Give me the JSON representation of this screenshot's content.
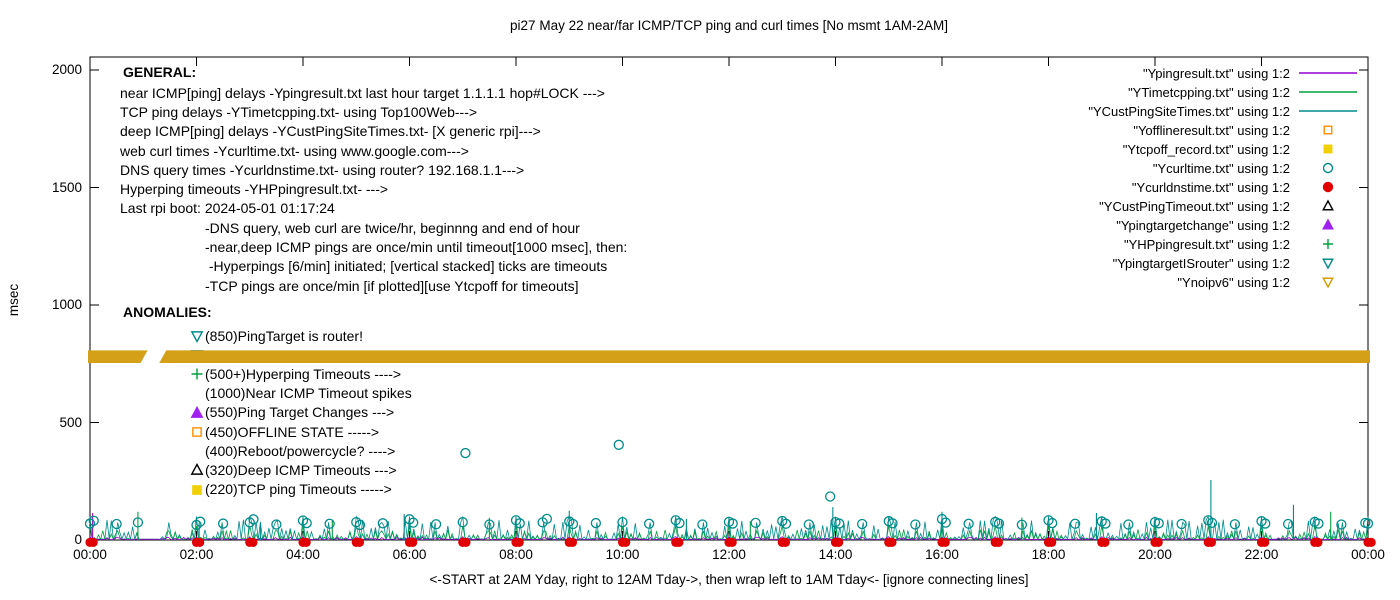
{
  "title": "pi27 May 22  near/far ICMP/TCP ping and curl times [No msmt 1AM-2AM]",
  "y_axis_label": "msec",
  "x_axis_note": "<-START at 2AM Yday, right to 12AM Tday->, then wrap left to 1AM Tday<- [ignore connecting lines]",
  "annotations": {
    "general_heading": "GENERAL:",
    "general_lines": [
      "near ICMP[ping] delays -Ypingresult.txt last hour target 1.1.1.1 hop#LOCK --->",
      "TCP ping delays -YTimetcpping.txt- using Top100Web--->",
      "deep ICMP[ping] delays -YCustPingSiteTimes.txt- [X generic rpi]--->",
      "web curl times -Ycurltime.txt- using www.google.com--->",
      "DNS query times -Ycurldnstime.txt- using router? 192.168.1.1--->",
      "Hyperping timeouts -YHPpingresult.txt- --->",
      "Last rpi boot: 2024-05-01 01:17:24"
    ],
    "general_sub_lines": [
      "-DNS query, web curl are twice/hr, beginnng and end of hour",
      "-near,deep ICMP pings are once/min until timeout[1000 msec], then:",
      " -Hyperpings [6/min] initiated; [vertical stacked] ticks are timeouts",
      "-TCP pings are once/min [if plotted][use Ytcpoff for timeouts]"
    ],
    "anomalies_heading": "ANOMALIES:",
    "anomalies": [
      {
        "label": "(850)PingTarget is router!",
        "marker": "triangle-down-open",
        "color": "#008b8b"
      },
      {
        "label": "",
        "marker": "triangle-down-open",
        "color": "#008b8b"
      },
      {
        "label": "(500+)Hyperping Timeouts ---->",
        "marker": "plus",
        "color": "#00a040"
      },
      {
        "label": "(1000)Near ICMP Timeout spikes",
        "marker": "none",
        "color": ""
      },
      {
        "label": "(550)Ping Target Changes --->",
        "marker": "triangle-up-fill",
        "color": "#a020f0"
      },
      {
        "label": "(450)OFFLINE STATE ----->",
        "marker": "square-open",
        "color": "#ff8c00"
      },
      {
        "label": "(400)Reboot/powercycle? ---->",
        "marker": "none",
        "color": ""
      },
      {
        "label": "(320)Deep ICMP Timeouts --->",
        "marker": "triangle-up-open",
        "color": "#000000"
      },
      {
        "label": "(220)TCP ping Timeouts ----->",
        "marker": "square-fill",
        "color": "#f0d000"
      }
    ]
  },
  "chart_data": {
    "type": "line+scatter",
    "title": "pi27 May 22  near/far ICMP/TCP ping and curl times [No msmt 1AM-2AM]",
    "ylabel": "msec",
    "ylim": [
      0,
      2000
    ],
    "grid": false,
    "legend_position": "top-right",
    "y_ticks": [
      0,
      500,
      1000,
      1500,
      2000
    ],
    "x_tick_labels": [
      "00:00",
      "02:00",
      "04:00",
      "06:00",
      "08:00",
      "10:00",
      "12:00",
      "14:00",
      "16:00",
      "18:00",
      "20:00",
      "22:00",
      "00:00"
    ],
    "x_range_hours": [
      0,
      24
    ],
    "legend": [
      {
        "label": "\"Ypingresult.txt\" using 1:2",
        "sample": "line",
        "color": "#9400d3"
      },
      {
        "label": "\"YTimetcpping.txt\" using 1:2",
        "sample": "line",
        "color": "#00a040"
      },
      {
        "label": "\"YCustPingSiteTimes.txt\" using 1:2",
        "sample": "line",
        "color": "#008b8b"
      },
      {
        "label": "\"Yofflineresult.txt\" using 1:2",
        "sample": "marker",
        "marker": "square-open",
        "color": "#ff8c00"
      },
      {
        "label": "\"Ytcpoff_record.txt\" using 1:2",
        "sample": "marker",
        "marker": "square-fill",
        "color": "#f0d000"
      },
      {
        "label": "\"Ycurltime.txt\" using 1:2",
        "sample": "marker",
        "marker": "circle-open",
        "color": "#008b8b"
      },
      {
        "label": "\"Ycurldnstime.txt\" using 1:2",
        "sample": "marker",
        "marker": "circle-fill",
        "color": "#e00000"
      },
      {
        "label": "\"YCustPingTimeout.txt\" using 1:2",
        "sample": "marker",
        "marker": "triangle-up-open",
        "color": "#000000"
      },
      {
        "label": "\"Ypingtargetchange\" using 1:2",
        "sample": "marker",
        "marker": "triangle-up-fill",
        "color": "#a020f0"
      },
      {
        "label": "\"YHPpingresult.txt\" using 1:2",
        "sample": "marker",
        "marker": "plus",
        "color": "#00a040"
      },
      {
        "label": "\"YpingtargetISrouter\" using 1:2",
        "sample": "marker",
        "marker": "triangle-down-open",
        "color": "#008b8b"
      },
      {
        "label": "\"Ynoipv6\" using 1:2",
        "sample": "marker",
        "marker": "triangle-down-open",
        "color": "#d79c00"
      }
    ],
    "band": {
      "series": "Ynoipv6",
      "y_center_msec": 780,
      "y_half_msec": 27,
      "gap_hours": [
        0.95,
        1.3
      ],
      "color": "#d4a017"
    },
    "noise": {
      "step_hours": 0.04,
      "quiet_hours": [
        0.95,
        1.3
      ],
      "quiet_value": 3,
      "series": [
        {
          "name": "deep_icmp_YCustPingSiteTimes",
          "color": "#008b8b",
          "min": 4,
          "max": 88,
          "hourly_peak": 100
        },
        {
          "name": "tcp_ping_YTimetcpping",
          "color": "#00a040",
          "min": 2,
          "max": 46,
          "hourly_peak": 60
        },
        {
          "name": "near_icmp_Ypingresult",
          "color": "#9400d3",
          "min": 2,
          "max": 12,
          "hourly_peak": 14
        }
      ]
    },
    "spikes": [
      [
        0.05,
        115,
        "#9400d3"
      ],
      [
        0.9,
        120,
        "#00a040"
      ],
      [
        2.05,
        75,
        "#008b8b"
      ],
      [
        3.2,
        65,
        "#008b8b"
      ],
      [
        4.55,
        85,
        "#00a040"
      ],
      [
        5.9,
        110,
        "#008b8b"
      ],
      [
        7.5,
        95,
        "#00a040"
      ],
      [
        9.0,
        125,
        "#008b8b"
      ],
      [
        11.2,
        90,
        "#008b8b"
      ],
      [
        12.4,
        80,
        "#00a040"
      ],
      [
        13.95,
        140,
        "#008b8b"
      ],
      [
        16.0,
        120,
        "#008b8b"
      ],
      [
        17.5,
        95,
        "#00a040"
      ],
      [
        18.9,
        115,
        "#008b8b"
      ],
      [
        21.05,
        255,
        "#008b8b"
      ],
      [
        22.6,
        150,
        "#008b8b"
      ],
      [
        23.3,
        120,
        "#00a040"
      ]
    ],
    "curl_points": [
      [
        0,
        70
      ],
      [
        0.07,
        82
      ],
      [
        0.5,
        68
      ],
      [
        0.9,
        75
      ],
      [
        2,
        64
      ],
      [
        2.07,
        78
      ],
      [
        2.5,
        70
      ],
      [
        3,
        75
      ],
      [
        3.07,
        88
      ],
      [
        3.5,
        66
      ],
      [
        4,
        83
      ],
      [
        4.07,
        72
      ],
      [
        4.5,
        69
      ],
      [
        5,
        76
      ],
      [
        5.07,
        64
      ],
      [
        5.5,
        71
      ],
      [
        6,
        88
      ],
      [
        6.07,
        74
      ],
      [
        6.5,
        67
      ],
      [
        7,
        76
      ],
      [
        7.05,
        370
      ],
      [
        7.5,
        66
      ],
      [
        8,
        84
      ],
      [
        8.07,
        71
      ],
      [
        8.5,
        75
      ],
      [
        8.58,
        90
      ],
      [
        9,
        79
      ],
      [
        9.07,
        68
      ],
      [
        9.5,
        72
      ],
      [
        9.93,
        405
      ],
      [
        10,
        76
      ],
      [
        10.5,
        69
      ],
      [
        11,
        84
      ],
      [
        11.07,
        72
      ],
      [
        11.5,
        66
      ],
      [
        12,
        77
      ],
      [
        12.07,
        70
      ],
      [
        12.5,
        73
      ],
      [
        13,
        81
      ],
      [
        13.07,
        69
      ],
      [
        13.5,
        66
      ],
      [
        13.9,
        185
      ],
      [
        14,
        76
      ],
      [
        14.07,
        70
      ],
      [
        14.5,
        68
      ],
      [
        15,
        80
      ],
      [
        15.07,
        71
      ],
      [
        15.5,
        66
      ],
      [
        16,
        89
      ],
      [
        16.07,
        74
      ],
      [
        16.5,
        69
      ],
      [
        17,
        77
      ],
      [
        17.07,
        70
      ],
      [
        17.5,
        65
      ],
      [
        18,
        84
      ],
      [
        18.07,
        72
      ],
      [
        18.5,
        69
      ],
      [
        19,
        79
      ],
      [
        19.07,
        70
      ],
      [
        19.5,
        66
      ],
      [
        20,
        76
      ],
      [
        20.07,
        71
      ],
      [
        20.5,
        68
      ],
      [
        21,
        84
      ],
      [
        21.07,
        73
      ],
      [
        21.5,
        67
      ],
      [
        22,
        80
      ],
      [
        22.07,
        70
      ],
      [
        22.5,
        68
      ],
      [
        23,
        77
      ],
      [
        23.07,
        70
      ],
      [
        23.5,
        66
      ],
      [
        23.95,
        73
      ],
      [
        24,
        70
      ]
    ],
    "dns_hours": [
      0,
      2,
      3,
      4,
      5,
      6,
      7,
      8,
      9,
      10,
      11,
      12,
      13,
      14,
      15,
      16,
      17,
      18,
      19,
      20,
      21,
      22,
      23,
      24
    ],
    "dns_value_msec": -10,
    "colors": {
      "near_icmp": "#9400d3",
      "tcp_ping": "#00a040",
      "deep_icmp": "#008b8b",
      "offline": "#ff8c00",
      "tcpoff": "#f0d000",
      "curl": "#008b8b",
      "dns": "#e00000",
      "deep_timeout": "#000000",
      "target_change": "#a020f0",
      "hyperping": "#00a040",
      "noipv6_band": "#d4a017"
    }
  }
}
